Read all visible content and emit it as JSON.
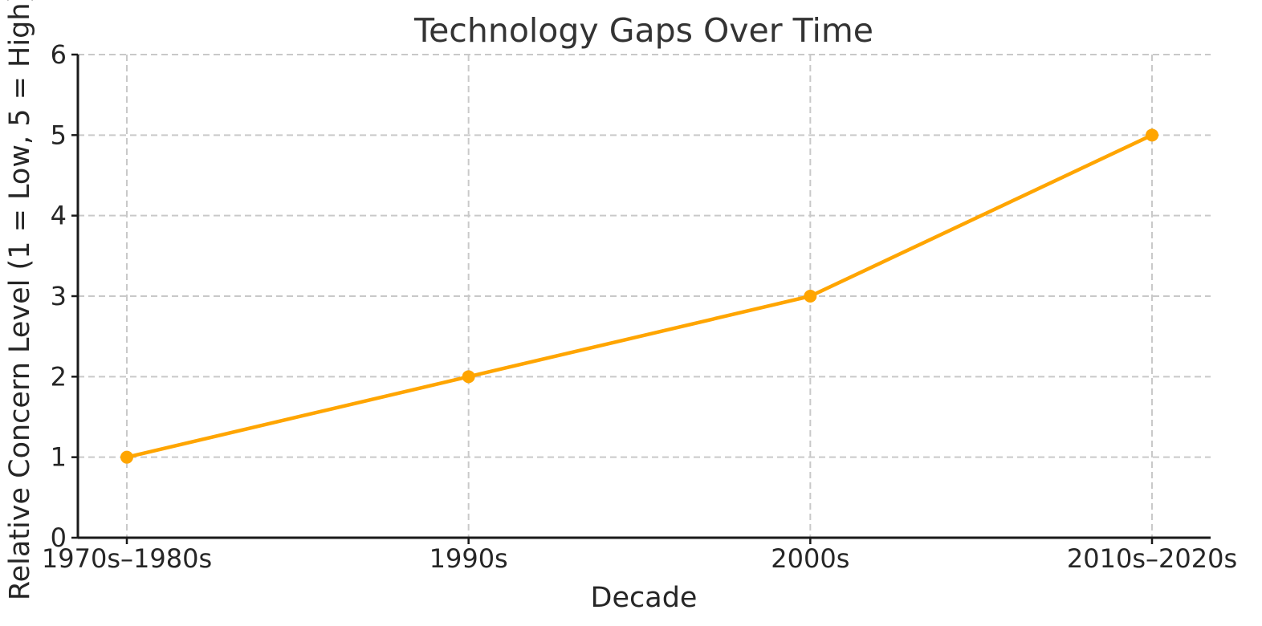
{
  "chart_data": {
    "type": "line",
    "title": "Technology Gaps Over Time",
    "xlabel": "Decade",
    "ylabel": "Relative Concern Level (1 = Low, 5 = High)",
    "categories": [
      "1970s–1980s",
      "1990s",
      "2000s",
      "2010s–2020s"
    ],
    "values": [
      1,
      2,
      3,
      5
    ],
    "ylim": [
      0,
      6
    ],
    "yticks": [
      0,
      1,
      2,
      3,
      4,
      5,
      6
    ],
    "grid": true,
    "grid_style": "dashed",
    "legend": "none",
    "colors": {
      "line": "#FFA500",
      "marker": "#FFA500",
      "grid": "#c9c9c9",
      "axis": "#1a1a1a",
      "text": "#262626",
      "background": "#ffffff"
    }
  }
}
